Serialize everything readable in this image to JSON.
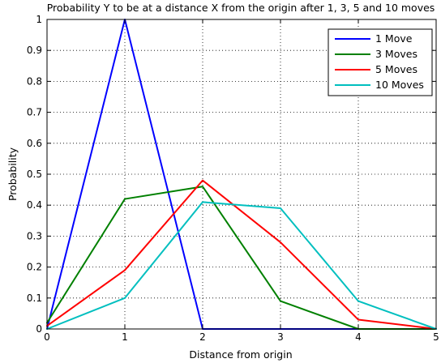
{
  "chart_data": {
    "type": "line",
    "title": "Probability Y to be at a distance X from the origin after 1, 3, 5 and 10 moves",
    "xlabel": "Distance from origin",
    "ylabel": "Probability",
    "xlim": [
      0,
      5
    ],
    "ylim": [
      0,
      1
    ],
    "xticks": [
      "0",
      "1",
      "2",
      "3",
      "4",
      "5"
    ],
    "yticks": [
      "0",
      "0.1",
      "0.2",
      "0.3",
      "0.4",
      "0.5",
      "0.6",
      "0.7",
      "0.8",
      "0.9",
      "1"
    ],
    "grid": true,
    "legend_position": "top-right",
    "x": [
      0,
      1,
      2,
      3,
      4,
      5
    ],
    "series": [
      {
        "name": "1 Move",
        "color": "#0000ff",
        "values": [
          0,
          1,
          0,
          0,
          0,
          0
        ]
      },
      {
        "name": "3 Moves",
        "color": "#008000",
        "values": [
          0.02,
          0.42,
          0.46,
          0.09,
          0,
          0
        ]
      },
      {
        "name": "5 Moves",
        "color": "#ff0000",
        "values": [
          0.01,
          0.19,
          0.48,
          0.28,
          0.03,
          0
        ]
      },
      {
        "name": "10 Moves",
        "color": "#00bfbf",
        "values": [
          0,
          0.1,
          0.41,
          0.39,
          0.09,
          0
        ]
      }
    ]
  }
}
